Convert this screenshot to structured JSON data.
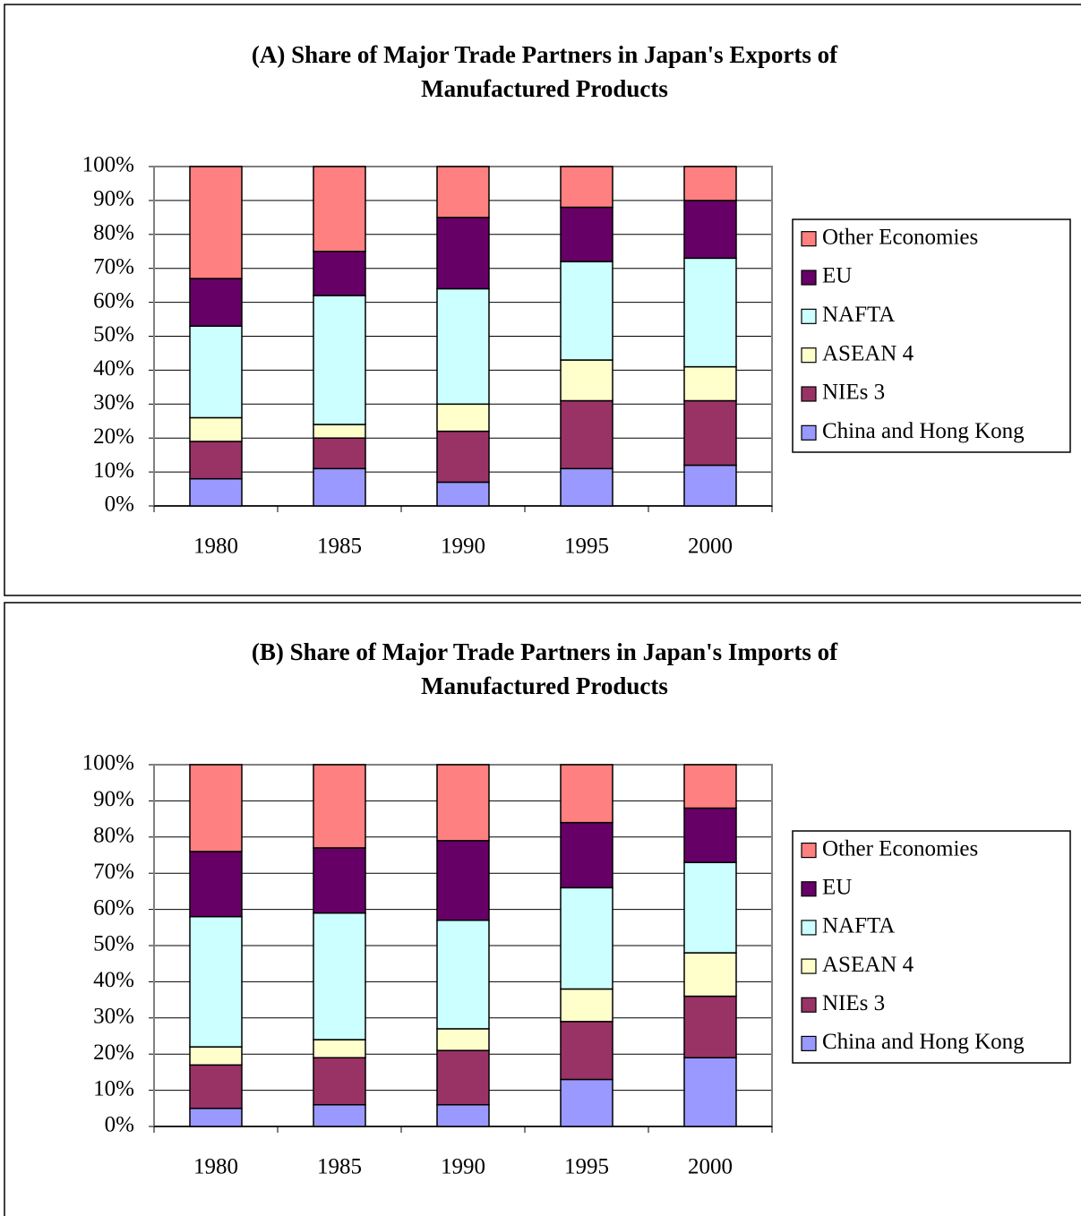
{
  "chart_data": [
    {
      "type": "bar",
      "stacked": true,
      "title": "(A) Share of Major Trade Partners in Japan's Exports of Manufactured Products",
      "categories": [
        "1980",
        "1985",
        "1990",
        "1995",
        "2000"
      ],
      "series": [
        {
          "name": "China and Hong Kong",
          "color": "#9999ff",
          "values": [
            8,
            11,
            7,
            11,
            12
          ]
        },
        {
          "name": "NIEs 3",
          "color": "#993366",
          "values": [
            11,
            9,
            15,
            20,
            19
          ]
        },
        {
          "name": "ASEAN 4",
          "color": "#ffffcc",
          "values": [
            7,
            4,
            8,
            12,
            10
          ]
        },
        {
          "name": "NAFTA",
          "color": "#ccffff",
          "values": [
            27,
            38,
            34,
            29,
            32
          ]
        },
        {
          "name": "EU",
          "color": "#660066",
          "values": [
            14,
            13,
            21,
            16,
            17
          ]
        },
        {
          "name": "Other Economies",
          "color": "#ff8080",
          "values": [
            33,
            25,
            15,
            12,
            10
          ]
        }
      ],
      "ylim": [
        0,
        100
      ],
      "yticks": [
        {
          "value": 0,
          "label": "0%"
        },
        {
          "value": 10,
          "label": "10%"
        },
        {
          "value": 20,
          "label": "20%"
        },
        {
          "value": 30,
          "label": "30%"
        },
        {
          "value": 40,
          "label": "40%"
        },
        {
          "value": 50,
          "label": "50%"
        },
        {
          "value": 60,
          "label": "60%"
        },
        {
          "value": 70,
          "label": "70%"
        },
        {
          "value": 80,
          "label": "80%"
        },
        {
          "value": 90,
          "label": "90%"
        },
        {
          "value": 100,
          "label": "100%"
        }
      ],
      "grid": true,
      "legend": "right"
    },
    {
      "type": "bar",
      "stacked": true,
      "title": "(B) Share of Major Trade Partners in Japan's Imports of Manufactured Products",
      "categories": [
        "1980",
        "1985",
        "1990",
        "1995",
        "2000"
      ],
      "series": [
        {
          "name": "China and Hong Kong",
          "color": "#9999ff",
          "values": [
            5,
            6,
            6,
            13,
            19
          ]
        },
        {
          "name": "NIEs 3",
          "color": "#993366",
          "values": [
            12,
            13,
            15,
            16,
            17
          ]
        },
        {
          "name": "ASEAN 4",
          "color": "#ffffcc",
          "values": [
            5,
            5,
            6,
            9,
            12
          ]
        },
        {
          "name": "NAFTA",
          "color": "#ccffff",
          "values": [
            36,
            35,
            30,
            28,
            25
          ]
        },
        {
          "name": "EU",
          "color": "#660066",
          "values": [
            18,
            18,
            22,
            18,
            15
          ]
        },
        {
          "name": "Other Economies",
          "color": "#ff8080",
          "values": [
            24,
            23,
            21,
            16,
            12
          ]
        }
      ],
      "ylim": [
        0,
        100
      ],
      "yticks": [
        {
          "value": 0,
          "label": "0%"
        },
        {
          "value": 10,
          "label": "10%"
        },
        {
          "value": 20,
          "label": "20%"
        },
        {
          "value": 30,
          "label": "30%"
        },
        {
          "value": 40,
          "label": "40%"
        },
        {
          "value": 50,
          "label": "50%"
        },
        {
          "value": 60,
          "label": "60%"
        },
        {
          "value": 70,
          "label": "70%"
        },
        {
          "value": 80,
          "label": "80%"
        },
        {
          "value": 90,
          "label": "90%"
        },
        {
          "value": 100,
          "label": "100%"
        }
      ],
      "grid": true,
      "legend": "right"
    }
  ]
}
